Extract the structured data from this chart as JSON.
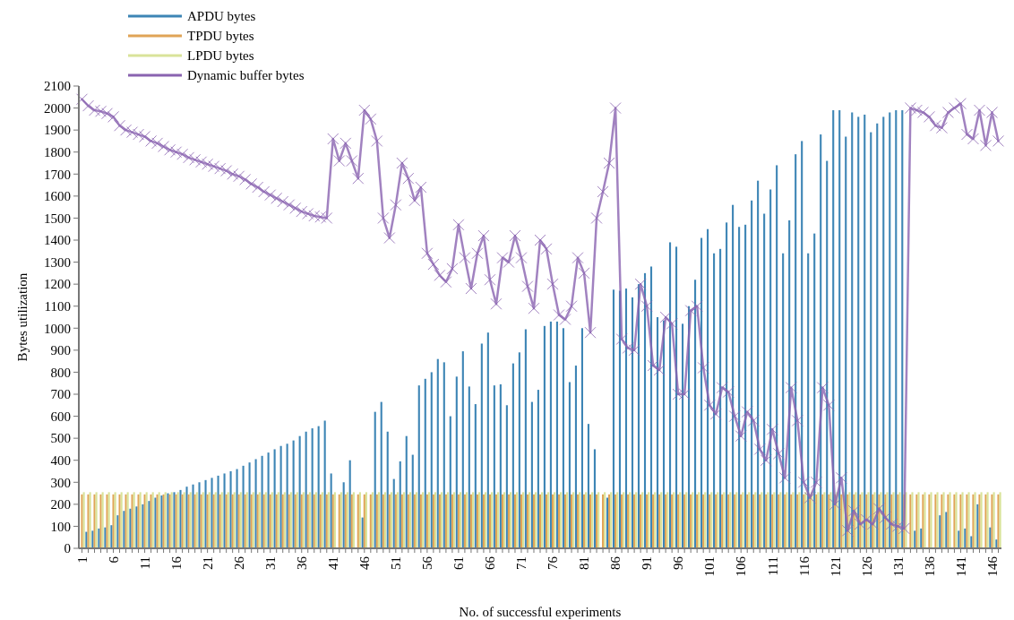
{
  "chart_data": {
    "type": "bar",
    "xlabel": "No. of successful experiments",
    "ylabel": "Bytes utilization",
    "categories": [
      "1",
      null,
      null,
      null,
      null,
      "6",
      null,
      null,
      null,
      null,
      "11",
      null,
      null,
      null,
      null,
      "16",
      null,
      null,
      null,
      null,
      "21",
      null,
      null,
      null,
      null,
      "26",
      null,
      null,
      null,
      null,
      "31",
      null,
      null,
      null,
      null,
      "36",
      null,
      null,
      null,
      null,
      "41",
      null,
      null,
      null,
      null,
      "46",
      null,
      null,
      null,
      null,
      "51",
      null,
      null,
      null,
      null,
      "56",
      null,
      null,
      null,
      null,
      "61",
      null,
      null,
      null,
      null,
      "66",
      null,
      null,
      null,
      null,
      "71",
      null,
      null,
      null,
      null,
      "76",
      null,
      null,
      null,
      null,
      "81",
      null,
      null,
      null,
      null,
      "86",
      null,
      null,
      null,
      null,
      "91",
      null,
      null,
      null,
      null,
      "96",
      null,
      null,
      null,
      null,
      "101",
      null,
      null,
      null,
      null,
      "106",
      null,
      null,
      null,
      null,
      "111",
      null,
      null,
      null,
      null,
      "116",
      null,
      null,
      null,
      null,
      "121",
      null,
      null,
      null,
      null,
      "126",
      null,
      null,
      null,
      null,
      "131",
      null,
      null,
      null,
      null,
      "136",
      null,
      null,
      null,
      null,
      "141",
      null,
      null,
      null,
      null,
      "146",
      null
    ],
    "ylim": [
      0,
      2100
    ],
    "yticks": [
      0,
      100,
      200,
      300,
      400,
      500,
      600,
      700,
      800,
      900,
      1000,
      1100,
      1200,
      1300,
      1400,
      1500,
      1600,
      1700,
      1800,
      1900,
      2000,
      2100
    ],
    "legend": "top left",
    "grid": false,
    "series": [
      {
        "name": "APDU bytes",
        "color": "#3d85b5",
        "values": [
          0,
          75,
          80,
          90,
          95,
          105,
          150,
          170,
          180,
          190,
          200,
          215,
          230,
          240,
          250,
          255,
          265,
          280,
          290,
          300,
          310,
          320,
          330,
          340,
          350,
          360,
          375,
          390,
          405,
          420,
          435,
          450,
          465,
          475,
          490,
          510,
          530,
          545,
          555,
          580,
          340,
          0,
          300,
          400,
          0,
          140,
          0,
          620,
          665,
          530,
          315,
          395,
          510,
          425,
          740,
          770,
          800,
          860,
          845,
          600,
          780,
          895,
          735,
          655,
          930,
          980,
          740,
          745,
          650,
          840,
          890,
          995,
          665,
          720,
          1010,
          1030,
          1030,
          1000,
          755,
          830,
          1000,
          565,
          450,
          0,
          230,
          1175,
          1170,
          1180,
          1140,
          1200,
          1250,
          1280,
          1050,
          1035,
          1390,
          1370,
          1020,
          1100,
          1220,
          1410,
          1450,
          1340,
          1360,
          1480,
          1560,
          1460,
          1470,
          1580,
          1670,
          1520,
          1630,
          1740,
          1340,
          1490,
          1790,
          1850,
          1340,
          1430,
          1880,
          1760,
          1990,
          1990,
          1870,
          1980,
          1960,
          1970,
          1890,
          1930,
          1960,
          1980,
          1990,
          1990,
          0,
          80,
          90,
          0,
          0,
          150,
          165,
          0,
          80,
          90,
          55,
          200,
          0,
          95,
          40
        ]
      },
      {
        "name": "TPDU bytes",
        "color": "#e0a456",
        "values": [
          245,
          245,
          245,
          245,
          245,
          245,
          245,
          245,
          245,
          245,
          245,
          245,
          245,
          245,
          245,
          245,
          245,
          245,
          245,
          245,
          245,
          245,
          245,
          245,
          245,
          245,
          245,
          245,
          245,
          245,
          245,
          245,
          245,
          245,
          245,
          245,
          245,
          245,
          245,
          245,
          245,
          245,
          245,
          245,
          245,
          245,
          245,
          245,
          245,
          245,
          245,
          245,
          245,
          245,
          245,
          245,
          245,
          245,
          245,
          245,
          245,
          245,
          245,
          245,
          245,
          245,
          245,
          245,
          245,
          245,
          245,
          245,
          245,
          245,
          245,
          245,
          245,
          245,
          245,
          245,
          245,
          245,
          245,
          245,
          245,
          245,
          245,
          245,
          245,
          245,
          245,
          245,
          245,
          245,
          245,
          245,
          245,
          245,
          245,
          245,
          245,
          245,
          245,
          245,
          245,
          245,
          245,
          245,
          245,
          245,
          245,
          245,
          245,
          245,
          245,
          245,
          245,
          245,
          245,
          245,
          245,
          245,
          245,
          245,
          245,
          245,
          245,
          245,
          245,
          245,
          245,
          245,
          245,
          245,
          245,
          245,
          245,
          245,
          245,
          245,
          245,
          245,
          245,
          245,
          245,
          245,
          245
        ]
      },
      {
        "name": "LPDU bytes",
        "color": "#d9e39a",
        "values": [
          255,
          255,
          255,
          255,
          255,
          255,
          255,
          255,
          255,
          255,
          255,
          255,
          255,
          255,
          255,
          255,
          255,
          255,
          255,
          255,
          255,
          255,
          255,
          255,
          255,
          255,
          255,
          255,
          255,
          255,
          255,
          255,
          255,
          255,
          255,
          255,
          255,
          255,
          255,
          255,
          255,
          255,
          255,
          255,
          255,
          255,
          255,
          255,
          255,
          255,
          255,
          255,
          255,
          255,
          255,
          255,
          255,
          255,
          255,
          255,
          255,
          255,
          255,
          255,
          255,
          255,
          255,
          255,
          255,
          255,
          255,
          255,
          255,
          255,
          255,
          255,
          255,
          255,
          255,
          255,
          255,
          255,
          255,
          255,
          255,
          255,
          255,
          255,
          255,
          255,
          255,
          255,
          255,
          255,
          255,
          255,
          255,
          255,
          255,
          255,
          255,
          255,
          255,
          255,
          255,
          255,
          255,
          255,
          255,
          255,
          255,
          255,
          255,
          255,
          255,
          255,
          255,
          255,
          255,
          255,
          255,
          255,
          255,
          255,
          255,
          255,
          255,
          255,
          255,
          255,
          255,
          255,
          255,
          255,
          255,
          255,
          255,
          255,
          255,
          255,
          255,
          255,
          255,
          255,
          255,
          255,
          255
        ]
      },
      {
        "name": "Dynamic buffer bytes",
        "type": "line",
        "color": "#8a63b0",
        "marker": "cross",
        "line_style": "solid",
        "values": [
          2040,
          2010,
          1990,
          1985,
          1975,
          1960,
          1920,
          1900,
          1890,
          1880,
          1870,
          1850,
          1840,
          1825,
          1810,
          1800,
          1790,
          1775,
          1765,
          1755,
          1745,
          1735,
          1725,
          1715,
          1700,
          1690,
          1675,
          1655,
          1640,
          1620,
          1605,
          1590,
          1575,
          1560,
          1545,
          1530,
          1520,
          1510,
          1505,
          1500,
          1860,
          1760,
          1840,
          1760,
          1680,
          1990,
          1950,
          1850,
          1500,
          1410,
          1560,
          1750,
          1680,
          1580,
          1640,
          1340,
          1290,
          1240,
          1210,
          1270,
          1470,
          1320,
          1180,
          1340,
          1420,
          1220,
          1110,
          1320,
          1300,
          1420,
          1320,
          1190,
          1090,
          1400,
          1360,
          1200,
          1060,
          1040,
          1100,
          1320,
          1250,
          980,
          1500,
          1620,
          1750,
          2000,
          950,
          910,
          900,
          1200,
          1100,
          830,
          810,
          1050,
          1020,
          700,
          700,
          1080,
          1100,
          820,
          650,
          610,
          730,
          710,
          600,
          510,
          620,
          580,
          450,
          400,
          540,
          430,
          320,
          730,
          580,
          300,
          230,
          300,
          730,
          650,
          200,
          320,
          80,
          170,
          110,
          130,
          110,
          180,
          140,
          110,
          100,
          90,
          2000,
          1990,
          1980,
          1960,
          1920,
          1910,
          1980,
          2000,
          2020,
          1880,
          1860,
          1990,
          1830,
          1980,
          1850
        ]
      }
    ]
  }
}
